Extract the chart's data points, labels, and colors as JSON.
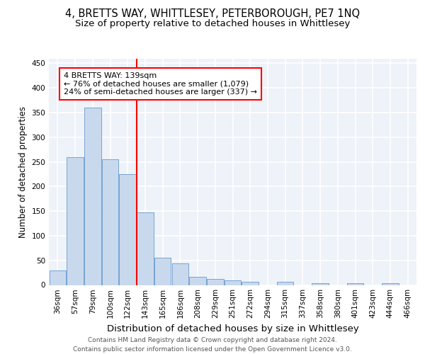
{
  "title1": "4, BRETTS WAY, WHITTLESEY, PETERBOROUGH, PE7 1NQ",
  "title2": "Size of property relative to detached houses in Whittlesey",
  "xlabel": "Distribution of detached houses by size in Whittlesey",
  "ylabel": "Number of detached properties",
  "categories": [
    "36sqm",
    "57sqm",
    "79sqm",
    "100sqm",
    "122sqm",
    "143sqm",
    "165sqm",
    "186sqm",
    "208sqm",
    "229sqm",
    "251sqm",
    "272sqm",
    "294sqm",
    "315sqm",
    "337sqm",
    "358sqm",
    "380sqm",
    "401sqm",
    "423sqm",
    "444sqm",
    "466sqm"
  ],
  "values": [
    30,
    260,
    360,
    255,
    225,
    148,
    55,
    44,
    17,
    12,
    9,
    7,
    0,
    6,
    0,
    3,
    0,
    4,
    0,
    3,
    0
  ],
  "bar_color": "#c9d9ed",
  "bar_edge_color": "#6699cc",
  "annotation_text": "4 BRETTS WAY: 139sqm\n← 76% of detached houses are smaller (1,079)\n24% of semi-detached houses are larger (337) →",
  "annotation_box_color": "white",
  "annotation_box_edge": "red",
  "vline_color": "red",
  "vline_x_index": 4.5,
  "footer": "Contains HM Land Registry data © Crown copyright and database right 2024.\nContains public sector information licensed under the Open Government Licence v3.0.",
  "ylim": [
    0,
    460
  ],
  "background_color": "#eef2f9",
  "grid_color": "white",
  "title1_fontsize": 10.5,
  "title2_fontsize": 9.5,
  "xlabel_fontsize": 9.5,
  "ylabel_fontsize": 8.5,
  "tick_fontsize": 7.5,
  "footer_fontsize": 6.5,
  "ann_fontsize": 8.0
}
